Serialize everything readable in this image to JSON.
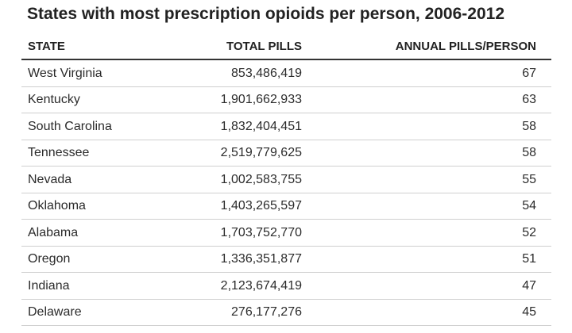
{
  "chart_data": {
    "type": "table",
    "title": "States with most prescription opioids per person, 2006-2012",
    "columns": [
      "STATE",
      "TOTAL PILLS",
      "ANNUAL PILLS/PERSON"
    ],
    "rows": [
      [
        "West Virginia",
        "853,486,419",
        "67"
      ],
      [
        "Kentucky",
        "1,901,662,933",
        "63"
      ],
      [
        "South Carolina",
        "1,832,404,451",
        "58"
      ],
      [
        "Tennessee",
        "2,519,779,625",
        "58"
      ],
      [
        "Nevada",
        "1,002,583,755",
        "55"
      ],
      [
        "Oklahoma",
        "1,403,265,597",
        "54"
      ],
      [
        "Alabama",
        "1,703,752,770",
        "52"
      ],
      [
        "Oregon",
        "1,336,351,877",
        "51"
      ],
      [
        "Indiana",
        "2,123,674,419",
        "47"
      ],
      [
        "Delaware",
        "276,177,276",
        "45"
      ]
    ]
  },
  "colors": {
    "text": "#222222",
    "header_rule": "#333333",
    "row_rule": "#cfcfcf"
  }
}
